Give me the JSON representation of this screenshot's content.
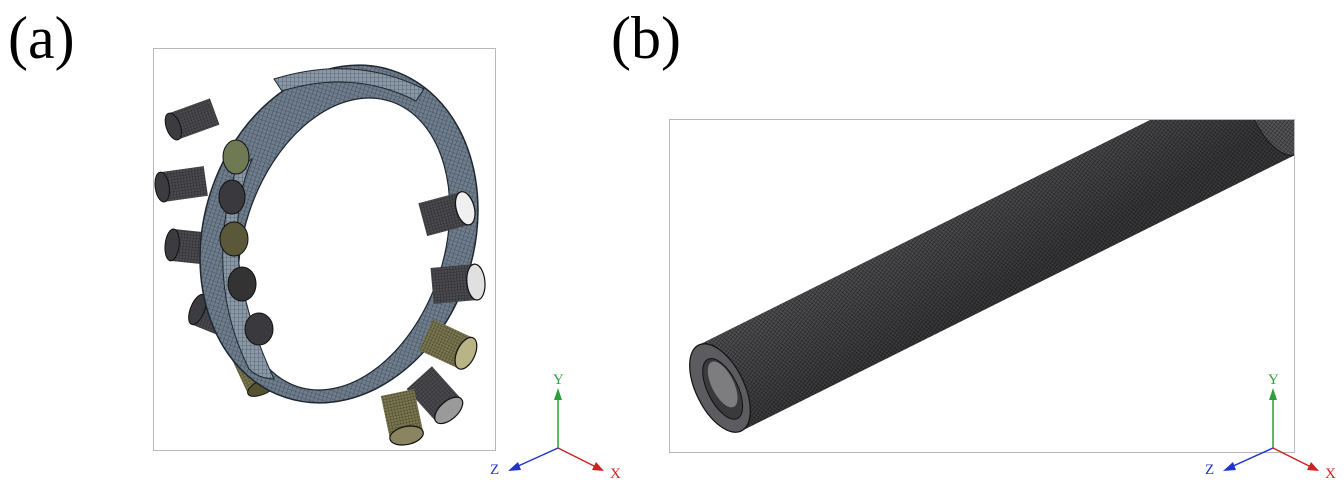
{
  "panels": [
    {
      "label": "(a)",
      "axes": {
        "y": "Y",
        "z": "Z",
        "x": "X"
      },
      "axis_colors": {
        "y": "#2e9e3a",
        "z": "#2233cc",
        "x": "#cc2222"
      }
    },
    {
      "label": "(b)",
      "axes": {
        "y": "Y",
        "z": "Z",
        "x": "X"
      },
      "axis_colors": {
        "y": "#2e9e3a",
        "z": "#2233cc",
        "x": "#cc2222"
      }
    }
  ],
  "mesh_colors": {
    "ring": "#5b6b7a",
    "pipe_dark": "#3a3a3c",
    "pipe_yellow": "#6b6845",
    "tube": "#4a4a4a"
  }
}
